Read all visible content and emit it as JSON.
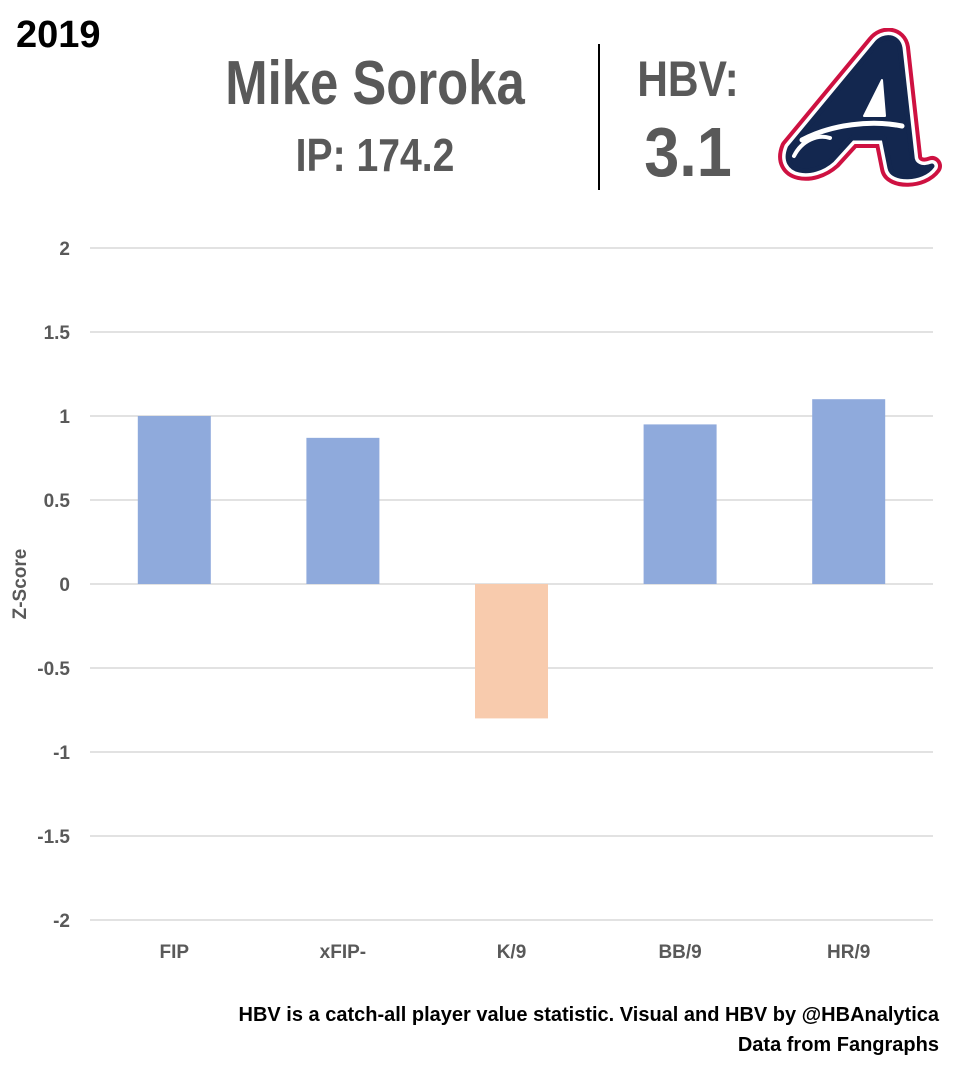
{
  "header": {
    "year": "2019",
    "player_name": "Mike Soroka",
    "ip_text": "IP: 174.2",
    "hbv_label": "HBV:",
    "hbv_value": "3.1"
  },
  "logo": {
    "icon": "braves-a-logo-icon",
    "colors": {
      "fill": "#13274F",
      "inner": "#ffffff",
      "outline": "#CE1141"
    }
  },
  "chart_data": {
    "type": "bar",
    "categories": [
      "FIP",
      "xFIP-",
      "K/9",
      "BB/9",
      "HR/9"
    ],
    "values": [
      1.0,
      0.87,
      -0.8,
      0.95,
      1.1
    ],
    "ylabel": "Z-Score",
    "xlabel": "",
    "ylim": [
      -2,
      2
    ],
    "yticks": [
      "2",
      "1.5",
      "1",
      "0.5",
      "0",
      "-0.5",
      "-1",
      "-1.5",
      "-2"
    ],
    "ytick_values": [
      2,
      1.5,
      1,
      0.5,
      0,
      -0.5,
      -1,
      -1.5,
      -2
    ],
    "grid": true,
    "colors": {
      "positive": "#8FAADC",
      "negative": "#F8CBAD",
      "grid": "#d9d9d9",
      "tick_text": "#595959"
    }
  },
  "footer": {
    "line1": "HBV is a catch-all player value statistic. Visual and HBV by @HBAnalytica",
    "line2": "Data from Fangraphs"
  }
}
